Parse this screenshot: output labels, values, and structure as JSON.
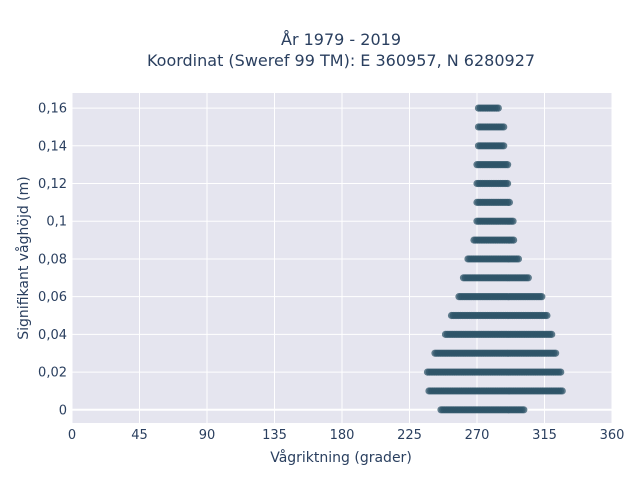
{
  "chart_data": {
    "type": "scatter",
    "title_line1": "År 1979 - 2019",
    "title_line2": "Koordinat (Sweref 99 TM): E 360957, N 6280927",
    "xlabel": "Vågriktning (grader)",
    "ylabel": "Signifikant våghöjd (m)",
    "xlim": [
      0,
      360
    ],
    "ylim": [
      -0.007,
      0.168
    ],
    "x_ticks": [
      0,
      45,
      90,
      135,
      180,
      225,
      270,
      315,
      360
    ],
    "x_tick_labels": [
      "0",
      "45",
      "90",
      "135",
      "180",
      "225",
      "270",
      "315",
      "360"
    ],
    "y_ticks": [
      0,
      0.02,
      0.04,
      0.06,
      0.08,
      0.1,
      0.12,
      0.14,
      0.16
    ],
    "y_tick_labels": [
      "0",
      "0,02",
      "0,04",
      "0,06",
      "0,08",
      "0,1",
      "0,12",
      "0,14",
      "0,16"
    ],
    "grid": true,
    "marker_color": "#2e5468",
    "plot_bg_color": "#e5e5ef",
    "series": [
      {
        "description_note": "",
        "rows": [
          {
            "y": 0.0,
            "x_min": 246,
            "x_max": 302
          },
          {
            "y": 0.01,
            "x_min": 238,
            "x_max": 327
          },
          {
            "y": 0.02,
            "x_min": 237,
            "x_max": 326
          },
          {
            "y": 0.03,
            "x_min": 242,
            "x_max": 323
          },
          {
            "y": 0.04,
            "x_min": 249,
            "x_max": 320
          },
          {
            "y": 0.05,
            "x_min": 253,
            "x_max": 317
          },
          {
            "y": 0.06,
            "x_min": 258,
            "x_max": 314
          },
          {
            "y": 0.07,
            "x_min": 261,
            "x_max": 305
          },
          {
            "y": 0.08,
            "x_min": 264,
            "x_max": 298
          },
          {
            "y": 0.09,
            "x_min": 268,
            "x_max": 295
          },
          {
            "y": 0.1,
            "x_min": 270,
            "x_max": 294
          },
          {
            "y": 0.11,
            "x_min": 270,
            "x_max": 292
          },
          {
            "y": 0.12,
            "x_min": 270,
            "x_max": 291
          },
          {
            "y": 0.13,
            "x_min": 270,
            "x_max": 291
          },
          {
            "y": 0.14,
            "x_min": 271,
            "x_max": 288
          },
          {
            "y": 0.15,
            "x_min": 271,
            "x_max": 288
          },
          {
            "y": 0.16,
            "x_min": 271,
            "x_max": 285
          }
        ]
      }
    ]
  }
}
